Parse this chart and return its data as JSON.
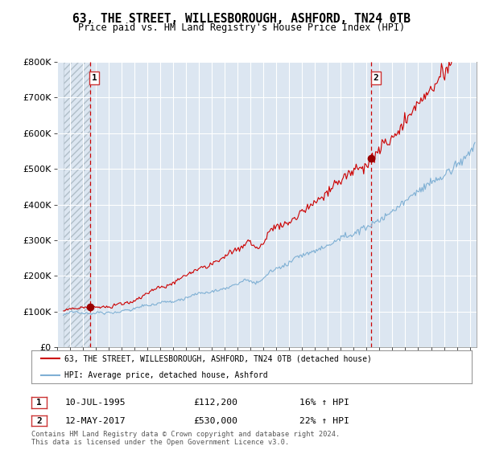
{
  "title": "63, THE STREET, WILLESBOROUGH, ASHFORD, TN24 0TB",
  "subtitle": "Price paid vs. HM Land Registry's House Price Index (HPI)",
  "ylim": [
    0,
    800000
  ],
  "xlim_start": 1993.5,
  "xlim_end": 2025.5,
  "bg_color": "#ffffff",
  "plot_bg_color": "#dce6f1",
  "grid_color": "#ffffff",
  "red_line_color": "#cc0000",
  "blue_line_color": "#7fb0d4",
  "dashed_line_color": "#cc0000",
  "marker_color": "#990000",
  "transaction1_date": 1995.54,
  "transaction1_price": 112200,
  "transaction2_date": 2017.37,
  "transaction2_price": 530000,
  "legend_label_red": "63, THE STREET, WILLESBOROUGH, ASHFORD, TN24 0TB (detached house)",
  "legend_label_blue": "HPI: Average price, detached house, Ashford",
  "note1_label": "1",
  "note1_date": "10-JUL-1995",
  "note1_price": "£112,200",
  "note1_hpi": "16% ↑ HPI",
  "note2_label": "2",
  "note2_date": "12-MAY-2017",
  "note2_price": "£530,000",
  "note2_hpi": "22% ↑ HPI",
  "footer": "Contains HM Land Registry data © Crown copyright and database right 2024.\nThis data is licensed under the Open Government Licence v3.0.",
  "ytick_labels": [
    "£0",
    "£100K",
    "£200K",
    "£300K",
    "£400K",
    "£500K",
    "£600K",
    "£700K",
    "£800K"
  ],
  "ytick_values": [
    0,
    100000,
    200000,
    300000,
    400000,
    500000,
    600000,
    700000,
    800000
  ]
}
